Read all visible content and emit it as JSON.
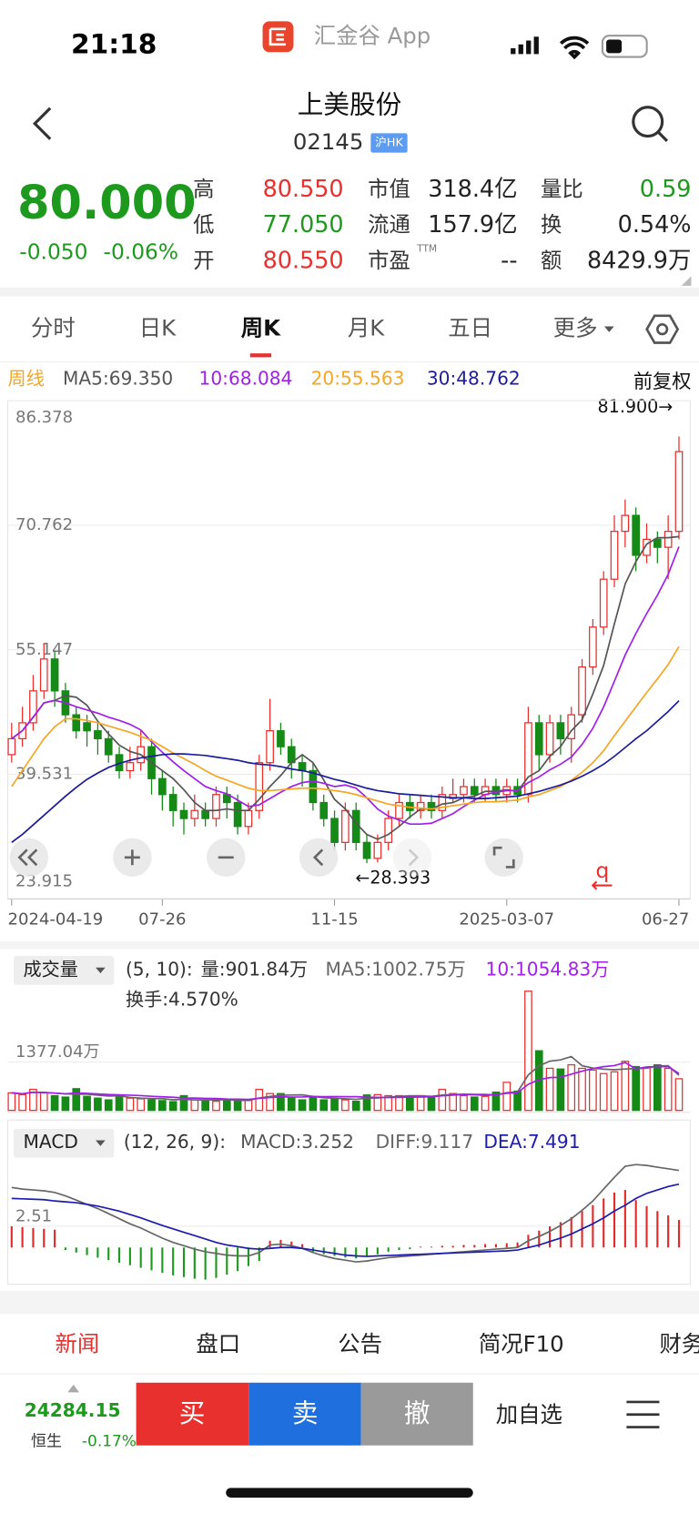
{
  "status_bar": {
    "time": "21:18",
    "app": "汇金谷 App"
  },
  "header": {
    "title": "上美股份",
    "code": "02145",
    "badge": "沪HK"
  },
  "quote": {
    "price": "80.000",
    "change": "-0.050",
    "change_pct": "-0.06%",
    "ttm": "TTM",
    "stats": [
      {
        "label": "高",
        "value": "80.550",
        "color": "#e8312f"
      },
      {
        "label": "低",
        "value": "77.050",
        "color": "#1d9a1d"
      },
      {
        "label": "开",
        "value": "80.550",
        "color": "#e8312f"
      },
      {
        "label": "市值",
        "value": "318.4亿",
        "color": "#222222"
      },
      {
        "label": "流通",
        "value": "157.9亿",
        "color": "#222222"
      },
      {
        "label": "市盈",
        "value": "--",
        "color": "#222222"
      },
      {
        "label": "量比",
        "value": "0.59",
        "color": "#1d9a1d"
      },
      {
        "label": "换",
        "value": "0.54%",
        "color": "#222222"
      },
      {
        "label": "额",
        "value": "8429.9万",
        "color": "#222222"
      }
    ]
  },
  "tabs": {
    "items": [
      "分时",
      "日K",
      "周K",
      "月K",
      "五日",
      "更多"
    ],
    "active": 2
  },
  "chart_data": [
    {
      "type": "candlestick",
      "label": "周线",
      "adjust": "前复权",
      "high_label": "81.900→",
      "low_label": "←28.393",
      "marker": "q",
      "up_color": "#e8312f",
      "down_color": "#168a16",
      "categories": [
        "2024-04-19",
        null,
        null,
        null,
        null,
        null,
        null,
        null,
        null,
        null,
        null,
        null,
        null,
        null,
        "07-26",
        null,
        null,
        null,
        null,
        null,
        null,
        null,
        null,
        null,
        null,
        null,
        null,
        null,
        null,
        null,
        "11-15",
        null,
        null,
        null,
        null,
        null,
        null,
        null,
        null,
        null,
        null,
        null,
        null,
        null,
        null,
        null,
        "2025-03-07",
        null,
        null,
        null,
        null,
        null,
        null,
        null,
        null,
        null,
        null,
        null,
        null,
        null,
        null,
        null,
        "06-27"
      ],
      "open": [
        42,
        44,
        46,
        50,
        54,
        50,
        47,
        46,
        45,
        44,
        42,
        40,
        41,
        43,
        39,
        37,
        35,
        34,
        35,
        34,
        37,
        36,
        33,
        35,
        41,
        45,
        43,
        41,
        40,
        36,
        34,
        31,
        35,
        31,
        29,
        31,
        34,
        36,
        35,
        36,
        35,
        36.5,
        37,
        38,
        37,
        38,
        37,
        38,
        37,
        46,
        42,
        46,
        44,
        47,
        53,
        58,
        64,
        70,
        72,
        67,
        69,
        68,
        70
      ],
      "high": [
        46,
        48,
        52,
        56,
        55,
        51,
        48,
        47,
        46,
        45,
        43,
        43,
        45,
        44,
        40,
        38,
        36,
        37,
        36,
        38,
        38,
        37,
        36,
        42,
        49,
        46,
        44,
        42,
        41,
        37,
        35,
        36,
        36,
        32,
        32,
        35,
        37,
        37,
        37,
        37,
        38,
        39,
        39,
        39,
        39,
        39,
        39,
        39,
        48,
        47,
        47,
        47,
        48,
        54,
        59,
        65,
        72,
        74,
        73,
        71,
        70,
        72,
        81.9
      ],
      "low": [
        41,
        43,
        45,
        49,
        48,
        46,
        44,
        43,
        42,
        41,
        39,
        39,
        40,
        37,
        35,
        33,
        32,
        33,
        33,
        33,
        34,
        32,
        32,
        34,
        40,
        42,
        39,
        38,
        35,
        33,
        30,
        30,
        30,
        28.393,
        28.5,
        30,
        33,
        34,
        34,
        34,
        34,
        36,
        36,
        36,
        36,
        36,
        36,
        36,
        36,
        40,
        41,
        42,
        41,
        46,
        52,
        57,
        63,
        68,
        65,
        66,
        66,
        64,
        69
      ],
      "close": [
        44,
        46,
        50,
        54,
        50,
        47,
        45,
        45,
        44,
        42,
        40,
        41,
        43,
        39,
        37,
        35,
        34,
        35,
        34,
        37,
        36,
        33,
        35,
        41,
        45,
        43,
        41,
        40,
        36,
        34,
        31,
        35,
        31,
        29,
        31,
        34,
        36,
        35,
        36,
        35,
        37,
        37,
        38,
        37,
        38,
        37,
        38,
        37,
        46,
        42,
        46,
        44,
        47,
        53,
        58,
        64,
        70,
        72,
        67,
        69,
        68,
        70,
        80
      ],
      "lines": [
        {
          "label": "MA5:69.350",
          "color": "#555555",
          "values": [
            44,
            45,
            46.7,
            48.5,
            48.8,
            49.4,
            49.2,
            48.2,
            46.2,
            44.6,
            43.2,
            42.4,
            42,
            41,
            40,
            39,
            37.6,
            36,
            35,
            35,
            35.2,
            35,
            35,
            36.4,
            38,
            39.4,
            41,
            42,
            41,
            38.8,
            36.4,
            35.2,
            33.4,
            32,
            31.4,
            32,
            33,
            34.2,
            35.2,
            35.2,
            35.8,
            36,
            36.6,
            36.8,
            37.4,
            37.4,
            37.6,
            37.4,
            39.2,
            40,
            41.8,
            43,
            45,
            46.4,
            49.6,
            53.2,
            58.4,
            63.4,
            66.2,
            68.4,
            69.2,
            69.2,
            69.35
          ]
        },
        {
          "label": "10:68.084",
          "color": "#a020e8",
          "values": [
            44,
            45,
            46.7,
            48.5,
            48.8,
            48.5,
            48,
            47.6,
            47.2,
            46.7,
            46.3,
            45.8,
            45.1,
            43.6,
            42.3,
            41.1,
            40,
            39,
            38,
            37.5,
            37.1,
            36.3,
            35.5,
            35.7,
            36.5,
            37.3,
            38,
            38.5,
            38.7,
            38.4,
            38,
            38.2,
            37.8,
            36.6,
            35.2,
            34.3,
            33.8,
            33.3,
            33.3,
            33.4,
            34,
            34.6,
            35.5,
            36.3,
            37,
            37.3,
            37.5,
            37.5,
            38.5,
            39.2,
            40.1,
            40.8,
            41.7,
            43.3,
            45.3,
            48,
            51.2,
            54.5,
            57.2,
            59.7,
            62,
            64.6,
            68.084
          ]
        },
        {
          "label": "20:55.563",
          "color": "#f5a623",
          "values": [
            38,
            40,
            42,
            44,
            45.5,
            46.5,
            46.5,
            46.3,
            46,
            45.6,
            45.2,
            44.8,
            44.3,
            43.8,
            43,
            42.2,
            41.5,
            40.8,
            40,
            39.3,
            38.8,
            38.3,
            37.8,
            37.5,
            37.5,
            37.6,
            37.7,
            37.8,
            37.8,
            37.7,
            37.5,
            37.3,
            37,
            36.6,
            36.2,
            35.8,
            35.6,
            35.4,
            35.3,
            35.2,
            35.4,
            35.6,
            35.8,
            36,
            36.1,
            36.1,
            36.2,
            36.3,
            36.7,
            37,
            37.5,
            38,
            38.8,
            39.8,
            41,
            42.5,
            44.4,
            46.2,
            48,
            49.8,
            51.5,
            53.3,
            55.563
          ]
        },
        {
          "label": "30:48.762",
          "color": "#1c1c9c",
          "values": [
            31,
            32,
            33.2,
            34.4,
            35.6,
            36.8,
            37.9,
            38.9,
            39.7,
            40.4,
            40.9,
            41.3,
            41.6,
            41.8,
            42,
            42.1,
            42.1,
            42,
            41.9,
            41.7,
            41.5,
            41.3,
            41,
            40.8,
            40.7,
            40.5,
            40.2,
            40,
            39.7,
            39.3,
            38.9,
            38.6,
            38.2,
            37.8,
            37.5,
            37.3,
            37.1,
            37,
            36.9,
            36.8,
            36.7,
            36.6,
            36.6,
            36.5,
            36.5,
            36.6,
            36.7,
            36.8,
            37.1,
            37.4,
            37.8,
            38.2,
            38.7,
            39.3,
            40,
            40.8,
            41.8,
            42.9,
            44,
            45,
            46.2,
            47.4,
            48.762
          ]
        }
      ],
      "ylim": [
        23.915,
        86.378
      ],
      "yticks": [
        86.378,
        70.762,
        55.147,
        39.531,
        23.915
      ]
    },
    {
      "type": "bar",
      "label": "成交量",
      "params": "(5, 10):",
      "volume_label": "量:901.84万",
      "extra": "换手:4.570%",
      "values": [
        500,
        450,
        600,
        500,
        420,
        380,
        620,
        400,
        350,
        300,
        420,
        350,
        330,
        300,
        280,
        250,
        420,
        300,
        260,
        260,
        300,
        320,
        280,
        600,
        480,
        480,
        350,
        300,
        380,
        300,
        330,
        300,
        260,
        440,
        450,
        420,
        420,
        350,
        420,
        400,
        600,
        480,
        420,
        380,
        400,
        520,
        800,
        550,
        3400,
        1700,
        1200,
        1180,
        1300,
        1200,
        1150,
        1050,
        1100,
        1400,
        1250,
        1220,
        1300,
        1200,
        901.84
      ],
      "lines": [
        {
          "label": "MA5:1002.75万",
          "color": "#666666",
          "values": [
            500,
            475,
            517,
            513,
            494,
            470,
            464,
            464,
            434,
            410,
            418,
            368,
            350,
            340,
            336,
            302,
            316,
            300,
            302,
            298,
            308,
            288,
            284,
            352,
            396,
            432,
            438,
            444,
            398,
            362,
            348,
            330,
            314,
            352,
            356,
            380,
            398,
            416,
            412,
            402,
            438,
            450,
            464,
            456,
            456,
            440,
            504,
            530,
            1010,
            1270,
            1405,
            1441,
            1535,
            1276,
            1206,
            1176,
            1160,
            1180,
            1190,
            1204,
            1264,
            1274,
            1002.75
          ]
        },
        {
          "label": "10:1054.83万",
          "color": "#a020e8",
          "values": [
            500,
            475,
            517,
            513,
            494,
            475,
            496,
            484,
            469,
            452,
            444,
            434,
            422,
            402,
            388,
            375,
            355,
            352,
            343,
            340,
            323,
            320,
            315,
            345,
            365,
            388,
            381,
            384,
            396,
            391,
            394,
            392,
            390,
            374,
            371,
            365,
            372,
            376,
            380,
            390,
            417,
            435,
            451,
            445,
            430,
            450,
            488,
            508,
            746,
            876,
            936,
            944,
            1032,
            1120,
            1195,
            1248,
            1278,
            1363,
            1188,
            1240,
            1249,
            1248,
            1054.83
          ]
        }
      ],
      "ylim": [
        0,
        4406
      ],
      "yticks": [
        {
          "value": 1377.04,
          "label": "1377.04万"
        }
      ]
    },
    {
      "type": "macd",
      "label": "MACD",
      "params": "(12, 26, 9):",
      "value_label": "MACD:3.252",
      "up_color": "#e02a2a",
      "down_color": "#1d9a1d",
      "values": [
        2.5,
        2.4,
        2.3,
        2.2,
        2.1,
        -0.3,
        -0.6,
        -0.9,
        -1.2,
        -1.5,
        -1.8,
        -2.1,
        -2.4,
        -2.7,
        -3,
        -3.3,
        -3.5,
        -3.7,
        -3.8,
        -3.6,
        -3.2,
        -2.8,
        -2.2,
        -1.6,
        0.8,
        0.9,
        0.7,
        0.4,
        -0.5,
        -0.8,
        -1,
        -1.2,
        -1.3,
        -1.1,
        -0.8,
        -0.5,
        -0.3,
        -0.2,
        0.1,
        0.1,
        0.2,
        0.2,
        0.3,
        0.3,
        0.4,
        0.4,
        0.5,
        0.6,
        1.5,
        2,
        2.5,
        3,
        3.6,
        4.3,
        5,
        5.8,
        6.5,
        6.8,
        5.6,
        4.9,
        4.3,
        3.8,
        3.252
      ],
      "lines": [
        {
          "label": "DIFF:9.117",
          "color": "#666666",
          "values": [
            7.1,
            6.9,
            6.8,
            6.7,
            6.5,
            6.1,
            5.6,
            5.1,
            4.6,
            4.0,
            3.4,
            2.8,
            2.3,
            1.7,
            1.1,
            0.6,
            0.2,
            -0.2,
            -0.5,
            -0.7,
            -0.9,
            -1.0,
            -1.0,
            -0.6,
            0.3,
            0.4,
            0.2,
            -0.1,
            -0.6,
            -1.0,
            -1.3,
            -1.5,
            -1.7,
            -1.6,
            -1.4,
            -1.2,
            -1.1,
            -1.0,
            -0.9,
            -0.8,
            -0.7,
            -0.6,
            -0.5,
            -0.4,
            -0.3,
            -0.2,
            -0.1,
            0,
            0.8,
            1.3,
            1.9,
            2.6,
            3.4,
            4.4,
            5.5,
            6.9,
            8.3,
            9.6,
            9.8,
            9.7,
            9.5,
            9.3,
            9.117
          ]
        },
        {
          "label": "DEA:7.491",
          "color": "#1c1cb0",
          "values": [
            5.8,
            5.75,
            5.7,
            5.65,
            5.5,
            5.4,
            5.3,
            5.1,
            4.9,
            4.6,
            4.3,
            3.9,
            3.5,
            3.05,
            2.6,
            2.2,
            1.8,
            1.4,
            1.0,
            0.6,
            0.3,
            0.1,
            -0.1,
            -0.2,
            -0.1,
            0,
            0,
            -0.1,
            -0.3,
            -0.5,
            -0.7,
            -0.9,
            -1.0,
            -1.05,
            -1.0,
            -0.95,
            -0.9,
            -0.85,
            -0.8,
            -0.75,
            -0.7,
            -0.65,
            -0.6,
            -0.55,
            -0.5,
            -0.45,
            -0.4,
            -0.3,
            0,
            0.3,
            0.7,
            1.1,
            1.6,
            2.2,
            2.8,
            3.5,
            4.3,
            5.0,
            5.8,
            6.4,
            6.8,
            7.2,
            7.491
          ]
        }
      ],
      "ylim": [
        -4.34,
        10.5
      ],
      "yticks": [
        2.51
      ]
    }
  ],
  "news_tabs": {
    "items": [
      "新闻",
      "盘口",
      "公告",
      "简况F10",
      "财务"
    ],
    "active": 0
  },
  "bottom_bar": {
    "index_value": "24284.15",
    "index_name": "恒生",
    "index_change": "-0.17%",
    "buttons": [
      "买",
      "卖",
      "撤"
    ],
    "watch": "加自选"
  }
}
